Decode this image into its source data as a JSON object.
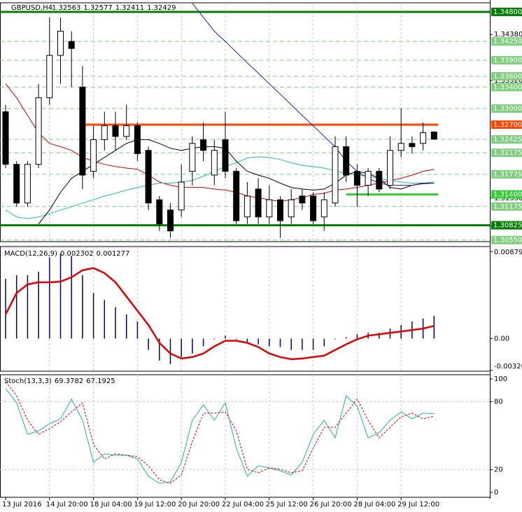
{
  "chart_data": [
    {
      "type": "candlestick",
      "title": "GBPUSD,H4",
      "categories": [
        "13 Jul 2016",
        null,
        null,
        null,
        "14 Jul 20:00",
        null,
        null,
        null,
        "18 Jul 04:00",
        null,
        null,
        null,
        "19 Jul 12:00",
        null,
        null,
        null,
        "20 Jul 20:00",
        null,
        null,
        null,
        "22 Jul 04:00",
        null,
        null,
        null,
        "25 Jul 12:00",
        null,
        null,
        null,
        "26 Jul 20:00",
        null,
        null,
        null,
        "28 Jul 04:00",
        null,
        null,
        null,
        "29 Jul 12:00",
        null,
        null,
        null
      ],
      "open": [
        1.3294,
        1.3196,
        1.3124,
        1.3196,
        1.332,
        1.3399,
        1.3425,
        1.334,
        1.3183,
        1.3242,
        1.3268,
        1.3248,
        1.3268,
        1.3222,
        1.313,
        1.3111,
        1.3111,
        1.3183,
        1.3242,
        1.3176,
        1.3242,
        1.3183,
        1.3098,
        1.315,
        1.3098,
        1.313,
        1.3098,
        1.3137,
        1.3137,
        1.3098,
        1.3124,
        1.3229,
        1.3183,
        1.3157,
        1.3183,
        1.3157,
        1.3222,
        1.3235,
        1.3235,
        1.32563
      ],
      "high": [
        1.3307,
        1.3202,
        1.3202,
        1.3346,
        1.347,
        1.347,
        1.3444,
        1.3379,
        1.3268,
        1.3294,
        1.3294,
        1.3307,
        1.3274,
        1.3229,
        1.3137,
        1.3124,
        1.3196,
        1.3248,
        1.3274,
        1.3242,
        1.3294,
        1.3189,
        1.3163,
        1.317,
        1.3157,
        1.3137,
        1.315,
        1.315,
        1.3144,
        1.3144,
        1.3248,
        1.3248,
        1.3196,
        1.3189,
        1.3189,
        1.3248,
        1.33,
        1.3248,
        1.3274,
        1.32577
      ],
      "low": [
        1.3189,
        1.3117,
        1.3117,
        1.3189,
        1.3307,
        1.3346,
        1.334,
        1.315,
        1.317,
        1.3222,
        1.3222,
        1.3242,
        1.3202,
        1.3111,
        1.3072,
        1.3059,
        1.3098,
        1.3157,
        1.3202,
        1.3157,
        1.317,
        1.3085,
        1.3085,
        1.3085,
        1.3085,
        1.3059,
        1.3085,
        1.3111,
        1.3085,
        1.3072,
        1.3117,
        1.3163,
        1.3117,
        1.3137,
        1.3144,
        1.315,
        1.3209,
        1.3216,
        1.3222,
        1.32411
      ],
      "close": [
        1.3196,
        1.3124,
        1.3196,
        1.332,
        1.3399,
        1.3444,
        1.3412,
        1.3176,
        1.3242,
        1.3268,
        1.3248,
        1.3268,
        1.3216,
        1.3124,
        1.3085,
        1.3072,
        1.3163,
        1.3235,
        1.3222,
        1.3222,
        1.3183,
        1.3091,
        1.3137,
        1.3098,
        1.313,
        1.3091,
        1.313,
        1.3124,
        1.3091,
        1.313,
        1.3229,
        1.3176,
        1.3157,
        1.3183,
        1.315,
        1.3222,
        1.3235,
        1.3229,
        1.3255,
        1.32429
      ],
      "up_color": "#ffffff",
      "down_color": "#000000",
      "series": [
        {
          "color": "#d00000",
          "values": [
            1.3346,
            1.332,
            1.3287,
            1.3255,
            1.3235,
            1.3229,
            1.3222,
            1.3209,
            1.3202,
            1.3196,
            1.3192,
            1.3189,
            1.3187,
            1.3176,
            1.3163,
            1.3157,
            1.3153,
            1.3153,
            1.3153,
            1.315,
            1.3148,
            1.3144,
            1.3137,
            1.3134,
            1.313,
            1.3127,
            1.313,
            1.3134,
            1.314,
            1.3142,
            1.3148,
            1.315,
            1.3153,
            1.3157,
            1.3161,
            1.3166,
            1.317,
            1.3176,
            1.3183,
            1.3187
          ]
        },
        {
          "color": "#20c0a0",
          "values": [
            1.3111,
            1.3098,
            1.3095,
            1.3098,
            1.3104,
            1.3111,
            1.3117,
            1.3124,
            1.313,
            1.3137,
            1.3142,
            1.3148,
            1.3153,
            1.3157,
            1.3161,
            1.3161,
            1.3163,
            1.3166,
            1.3174,
            1.3183,
            1.3192,
            1.3199,
            1.3208,
            1.321,
            1.3209,
            1.3205,
            1.3199,
            1.3194,
            1.3192,
            1.3189,
            1.3184,
            1.3179,
            1.3176,
            1.3174,
            1.317,
            1.3166,
            1.3163,
            1.3161,
            1.3161,
            1.3163
          ]
        },
        {
          "color": "#000000",
          "values": [
            null,
            null,
            null,
            1.3085,
            1.3111,
            1.3144,
            1.317,
            1.3183,
            1.3196,
            1.3209,
            1.3222,
            1.3235,
            1.3242,
            1.3242,
            1.3235,
            1.3226,
            1.3222,
            1.3226,
            1.3229,
            1.3229,
            1.3226,
            1.3202,
            1.3183,
            1.3176,
            1.317,
            1.3161,
            1.3153,
            1.315,
            1.3148,
            1.315,
            1.3161,
            1.3176,
            1.3183,
            1.3179,
            1.317,
            1.3153,
            1.315,
            1.3157,
            1.3161,
            1.3161
          ]
        },
        {
          "color": "#2020c0",
          "values": [
            null,
            null,
            null,
            null,
            null,
            null,
            null,
            null,
            null,
            null,
            null,
            null,
            null,
            null,
            null,
            null,
            null,
            1.3496,
            1.347,
            1.3444,
            1.3425,
            1.3405,
            1.3385,
            1.3366,
            1.3346,
            1.3327,
            1.3307,
            1.3287,
            1.3268,
            1.3248,
            1.3229,
            1.3202,
            1.3183,
            1.317,
            1.3161,
            1.3157,
            1.3157,
            1.3157,
            1.316,
            1.3161
          ]
        }
      ],
      "levels": [
        {
          "value": 1.348,
          "label": "1.34800",
          "color": "#008000",
          "style": "solid"
        },
        {
          "value": 1.3425,
          "label": "1.34250",
          "color": "#7fcf7f",
          "style": "dashed"
        },
        {
          "value": 1.339,
          "label": "1.33900",
          "color": "#7fcf7f",
          "style": "dashed"
        },
        {
          "value": 1.336,
          "label": "1.33600",
          "color": "#7fcf7f",
          "style": "dashed"
        },
        {
          "value": 1.334,
          "label": "1.33400",
          "color": "#7fcf7f",
          "style": "dashed"
        },
        {
          "value": 1.33,
          "label": "1.33000",
          "color": "#7fcf7f",
          "style": "dashed"
        },
        {
          "value": 1.327,
          "label": "1.32700",
          "color": "#ff4500",
          "style": "solid",
          "start": 7
        },
        {
          "value": 1.32425,
          "label": "1.32425",
          "color": "#7fcf7f",
          "style": "dashed"
        },
        {
          "value": 1.32175,
          "label": "1.32175",
          "color": "#7fcf7f",
          "style": "dashed"
        },
        {
          "value": 1.31775,
          "label": "1.31775",
          "color": "#7fcf7f",
          "style": "dashed"
        },
        {
          "value": 1.314,
          "label": "1.31400",
          "color": "#33cc33",
          "style": "solid",
          "start": 31
        },
        {
          "value": 1.31175,
          "label": "1.31175",
          "color": "#7fcf7f",
          "style": "dashed"
        },
        {
          "value": 1.30825,
          "label": "1.30825",
          "color": "#008000",
          "style": "solid"
        },
        {
          "value": 1.3055,
          "label": "1.30550",
          "color": "#7fcf7f",
          "style": "dashed"
        }
      ],
      "ylim": [
        1.3052,
        1.3497
      ],
      "yticks": [
        {
          "value": 1.3438,
          "label": "1.34380"
        },
        {
          "value": 1.3352,
          "label": "1.33520"
        },
        {
          "value": 1.3133,
          "label": "1.31330"
        },
        {
          "value": 1.3081,
          "label": "1.30810"
        }
      ]
    },
    {
      "type": "macd",
      "title": "MACD(12,26,9)",
      "series": [
        {
          "color": "#000080",
          "values": [
            0.00605,
            0.00641,
            0.00641,
            0.00677,
            0.00821,
            0.00857,
            0.00835,
            0.00641,
            0.00461,
            0.00389,
            0.00317,
            0.00245,
            0.00173,
            -0.00115,
            -0.00223,
            -0.00259,
            -0.00187,
            -0.00151,
            -0.00079,
            -7e-05,
            0.00029,
            -7e-05,
            -0.00043,
            -0.00058,
            -0.00079,
            -0.00086,
            -0.00115,
            -0.00115,
            -0.00115,
            -0.00079,
            -7e-05,
            0.00014,
            0.00043,
            0.00058,
            0.00058,
            0.00101,
            0.00137,
            0.00173,
            0.00202,
            0.002302
          ]
        },
        {
          "color": "#e00000",
          "values": [
            0.00245,
            0.00461,
            0.00547,
            0.00569,
            0.00569,
            0.00576,
            0.00619,
            0.00691,
            0.00713,
            0.00662,
            0.00569,
            0.00425,
            0.00281,
            0.00137,
            -0.00043,
            -0.00151,
            -0.00202,
            -0.00187,
            -0.00151,
            -0.00079,
            -0.00022,
            -0.00022,
            -0.00043,
            -0.00086,
            -0.00151,
            -0.00187,
            -0.00209,
            -0.00202,
            -0.00187,
            -0.00173,
            -0.00115,
            -0.00058,
            -7e-05,
            0.00029,
            0.00043,
            0.00058,
            0.00072,
            0.00086,
            0.00101,
            0.001277
          ]
        }
      ],
      "ylim": [
        -0.0033,
        0.0093
      ],
      "yticks": [
        0.008797,
        {
          "value": 0,
          "label": "0.00"
        },
        -0.003202
      ]
    },
    {
      "type": "stochastic",
      "title": "Stoch(13,3,3)",
      "series": [
        {
          "color": "#20b2aa",
          "values": [
            91.4,
            79.0,
            51.2,
            54.3,
            60.5,
            64.8,
            82.1,
            63.6,
            26.5,
            34.0,
            32.7,
            32.7,
            29.6,
            14.2,
            8.0,
            9.3,
            26.5,
            63.6,
            77.2,
            63.6,
            79.0,
            38.9,
            14.2,
            23.5,
            21.6,
            19.1,
            15.4,
            26.5,
            51.2,
            63.6,
            48.1,
            85.2,
            75.9,
            48.1,
            52.5,
            63.6,
            71.0,
            64.8,
            69.8,
            69.3782
          ]
        },
        {
          "color": "#e00000",
          "dashed": true,
          "values": [
            97.5,
            85.2,
            63.6,
            51.2,
            56.2,
            62.3,
            71.0,
            79.0,
            42.0,
            29.6,
            34.0,
            32.7,
            31.5,
            23.5,
            11.1,
            8.0,
            15.4,
            45.1,
            69.8,
            69.8,
            71.0,
            54.3,
            20.4,
            17.3,
            21.6,
            20.4,
            17.3,
            19.1,
            38.9,
            57.4,
            57.4,
            69.8,
            82.1,
            63.6,
            48.1,
            57.4,
            66.7,
            69.8,
            64.8,
            67.1925
          ]
        }
      ],
      "ylim": [
        -4.3,
        103.7
      ],
      "yticks": [
        100,
        80,
        20,
        0
      ],
      "grid_levels": [
        80,
        20
      ]
    }
  ]
}
